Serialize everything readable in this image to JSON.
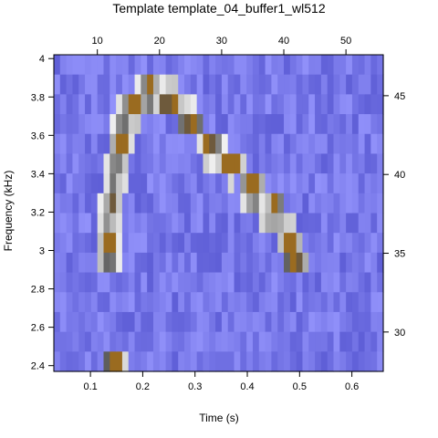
{
  "chart_data": {
    "type": "heatmap",
    "title": "Template template_04_buffer1_wl512",
    "xlabel": "Time (s)",
    "ylabel": "Frequency (kHz)",
    "xlim": [
      0.03,
      0.66
    ],
    "ylim": [
      2.37,
      4.02
    ],
    "x_ticks": [
      "0.1",
      "0.2",
      "0.3",
      "0.4",
      "0.5",
      "0.6"
    ],
    "y_ticks": [
      "2.4",
      "2.6",
      "2.8",
      "3",
      "3.2",
      "3.4",
      "3.6",
      "3.8",
      "4"
    ],
    "top_axis": {
      "lim": [
        3,
        56
      ],
      "ticks": [
        "10",
        "20",
        "30",
        "40",
        "50"
      ]
    },
    "right_axis": {
      "lim": [
        27.5,
        47.6
      ],
      "ticks": [
        "30",
        "35",
        "40",
        "45"
      ]
    },
    "grid": {
      "cols": 53,
      "rows": 16
    },
    "background_color": "#7b7bf0",
    "signal_color": "#9a6b20",
    "template_trace": [
      {
        "t": 0.135,
        "f": 3.0
      },
      {
        "t": 0.14,
        "f": 3.2
      },
      {
        "t": 0.15,
        "f": 3.4
      },
      {
        "t": 0.16,
        "f": 3.6
      },
      {
        "t": 0.18,
        "f": 3.75
      },
      {
        "t": 0.21,
        "f": 3.82
      },
      {
        "t": 0.25,
        "f": 3.78
      },
      {
        "t": 0.29,
        "f": 3.68
      },
      {
        "t": 0.33,
        "f": 3.55
      },
      {
        "t": 0.37,
        "f": 3.45
      },
      {
        "t": 0.41,
        "f": 3.32
      },
      {
        "t": 0.45,
        "f": 3.2
      },
      {
        "t": 0.48,
        "f": 3.05
      },
      {
        "t": 0.495,
        "f": 2.95
      }
    ],
    "low_blob": {
      "t": 0.145,
      "f": 2.42
    }
  }
}
